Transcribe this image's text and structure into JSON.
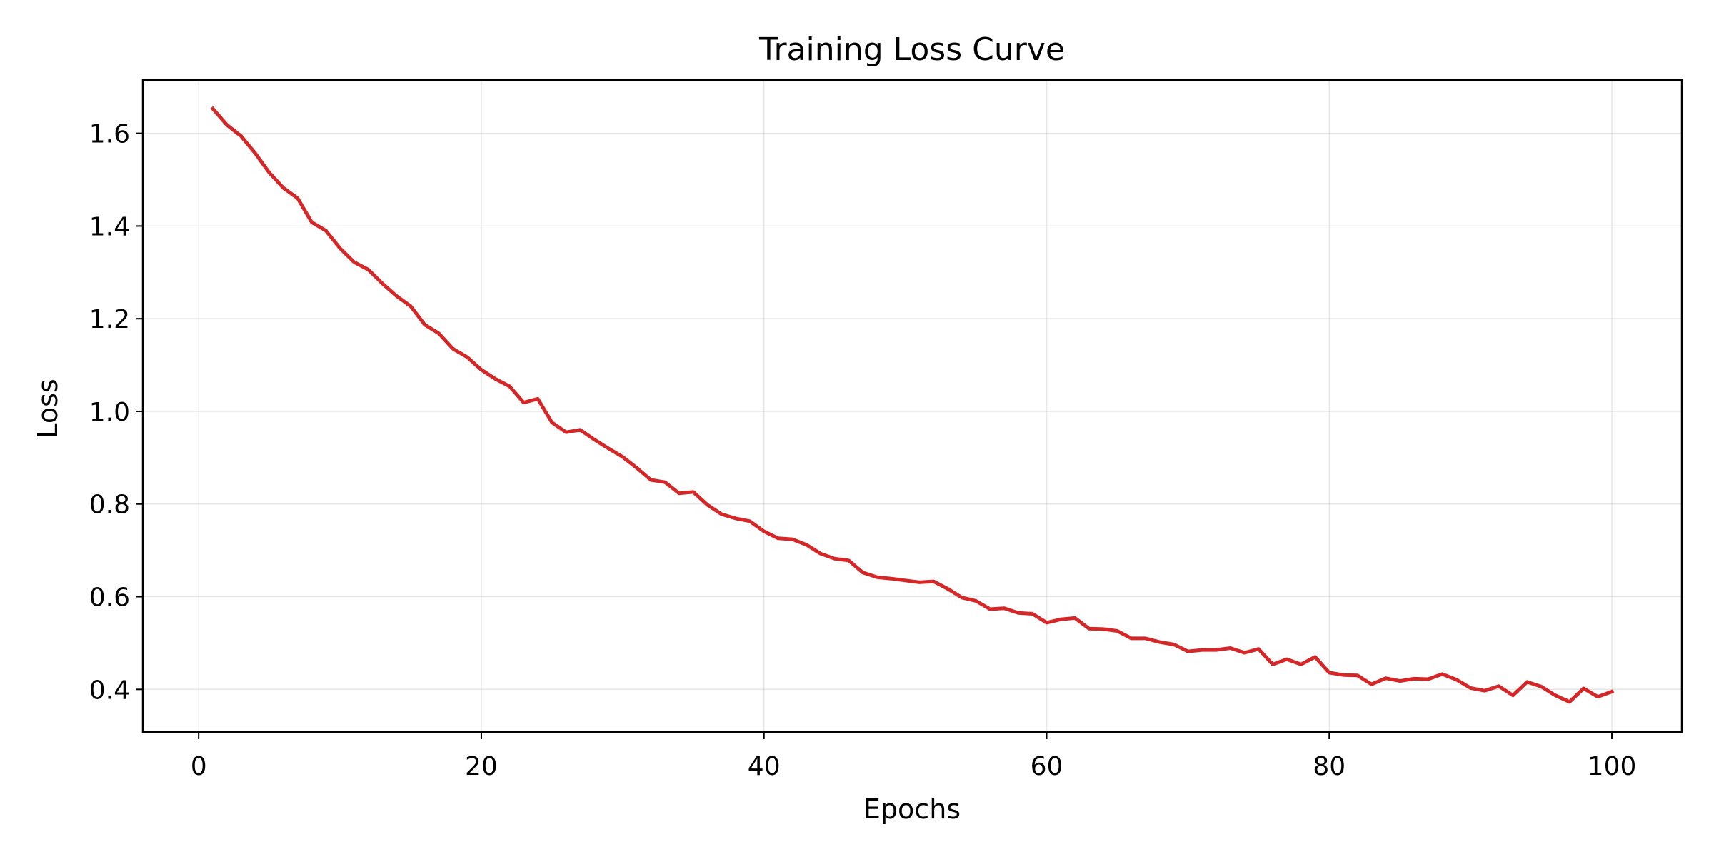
{
  "chart_data": {
    "type": "line",
    "title": "Training Loss Curve",
    "xlabel": "Epochs",
    "ylabel": "Loss",
    "xlim": [
      -3.95,
      104.95
    ],
    "ylim": [
      0.308,
      1.715
    ],
    "xticks": [
      0,
      20,
      40,
      60,
      80,
      100
    ],
    "yticks": [
      0.4,
      0.6,
      0.8,
      1.0,
      1.2,
      1.4,
      1.6
    ],
    "xtick_labels": [
      "0",
      "20",
      "40",
      "60",
      "80",
      "100"
    ],
    "ytick_labels": [
      "0.4",
      "0.6",
      "0.8",
      "1.0",
      "1.2",
      "1.4",
      "1.6"
    ],
    "grid": true,
    "legend": false,
    "series": [
      {
        "color": "#d62728",
        "x": [
          1,
          2,
          3,
          4,
          5,
          6,
          7,
          8,
          9,
          10,
          11,
          12,
          13,
          14,
          15,
          16,
          17,
          18,
          19,
          20,
          21,
          22,
          23,
          24,
          25,
          26,
          27,
          28,
          29,
          30,
          31,
          32,
          33,
          34,
          35,
          36,
          37,
          38,
          39,
          40,
          41,
          42,
          43,
          44,
          45,
          46,
          47,
          48,
          49,
          50,
          51,
          52,
          53,
          54,
          55,
          56,
          57,
          58,
          59,
          60,
          61,
          62,
          63,
          64,
          65,
          66,
          67,
          68,
          69,
          70,
          71,
          72,
          73,
          74,
          75,
          76,
          77,
          78,
          79,
          80,
          81,
          82,
          83,
          84,
          85,
          86,
          87,
          88,
          89,
          90,
          91,
          92,
          93,
          94,
          95,
          96,
          97,
          98,
          99,
          100
        ],
        "y": [
          1.653,
          1.618,
          1.594,
          1.557,
          1.515,
          1.482,
          1.46,
          1.408,
          1.39,
          1.352,
          1.322,
          1.306,
          1.276,
          1.249,
          1.227,
          1.187,
          1.168,
          1.135,
          1.117,
          1.09,
          1.07,
          1.054,
          1.019,
          1.027,
          0.976,
          0.955,
          0.96,
          0.939,
          0.92,
          0.902,
          0.878,
          0.852,
          0.847,
          0.823,
          0.826,
          0.798,
          0.778,
          0.769,
          0.763,
          0.741,
          0.726,
          0.724,
          0.712,
          0.693,
          0.682,
          0.678,
          0.652,
          0.642,
          0.639,
          0.635,
          0.631,
          0.633,
          0.617,
          0.598,
          0.591,
          0.573,
          0.575,
          0.565,
          0.563,
          0.544,
          0.551,
          0.554,
          0.531,
          0.53,
          0.526,
          0.51,
          0.51,
          0.502,
          0.497,
          0.482,
          0.485,
          0.485,
          0.489,
          0.479,
          0.487,
          0.454,
          0.465,
          0.454,
          0.47,
          0.436,
          0.431,
          0.43,
          0.411,
          0.424,
          0.418,
          0.423,
          0.422,
          0.433,
          0.421,
          0.403,
          0.397,
          0.407,
          0.387,
          0.416,
          0.406,
          0.387,
          0.373,
          0.402,
          0.384,
          0.395
        ]
      }
    ]
  }
}
